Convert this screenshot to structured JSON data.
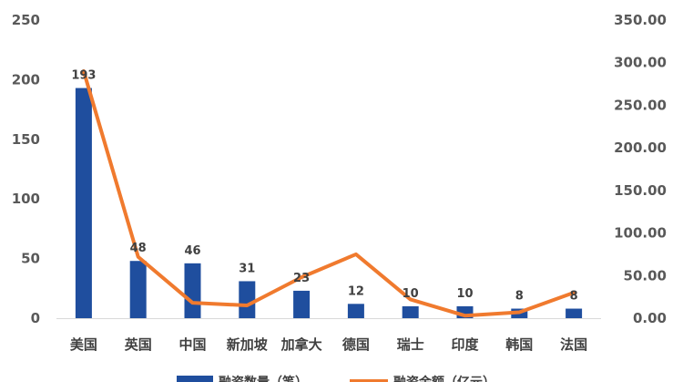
{
  "chart_data": {
    "type": "bar",
    "categories": [
      "美国",
      "英国",
      "中国",
      "新加坡",
      "加拿大",
      "德国",
      "瑞士",
      "印度",
      "韩国",
      "法国"
    ],
    "series": [
      {
        "name": "融资数量（笔）",
        "kind": "bar",
        "axis": "left",
        "color": "#1F4E9E",
        "values": [
          193,
          48,
          46,
          31,
          23,
          12,
          10,
          10,
          8,
          8
        ],
        "data_labels": [
          "193",
          "48",
          "46",
          "31",
          "23",
          "12",
          "10",
          "10",
          "8",
          "8"
        ]
      },
      {
        "name": "融资金额（亿元）",
        "kind": "line",
        "axis": "right",
        "color": "#F07A2E",
        "values": [
          290,
          72,
          18,
          15,
          48,
          75,
          22,
          3,
          7,
          30
        ]
      }
    ],
    "y_left": {
      "min": 0,
      "max": 250,
      "ticks": [
        "0",
        "50",
        "100",
        "150",
        "200",
        "250"
      ]
    },
    "y_right": {
      "min": 0,
      "max": 350,
      "ticks": [
        "0.00",
        "50.00",
        "100.00",
        "150.00",
        "200.00",
        "250.00",
        "300.00",
        "350.00"
      ]
    },
    "grid": false,
    "legend_position": "bottom"
  }
}
